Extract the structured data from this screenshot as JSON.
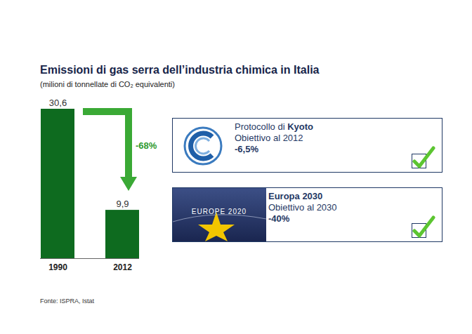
{
  "chart_data": {
    "type": "bar",
    "title": "Emissioni di gas serra dell’industria chimica in Italia",
    "subtitle": "(milioni di tonnellate di CO₂ equivalenti)",
    "categories": [
      "1990",
      "2012"
    ],
    "values": [
      30.6,
      9.9
    ],
    "value_labels": [
      "30,6",
      "9,9"
    ],
    "color": "#0e6b1f",
    "ylim": [
      0,
      30.6
    ],
    "data_labels": true,
    "tick_labels": "x",
    "annotations": [
      "-68%"
    ],
    "source": "Fonte: ISPRA, Istat"
  },
  "targets": [
    {
      "title_prefix": "Protocollo di",
      "title_bold": "Kyoto",
      "goal": "Obiettivo al 2012",
      "target": "-6,5%"
    },
    {
      "title_bold": "Europa 2030",
      "goal": "Obiettivo al 2030",
      "target": "-40%",
      "badge": "EUROPE 2020"
    }
  ]
}
